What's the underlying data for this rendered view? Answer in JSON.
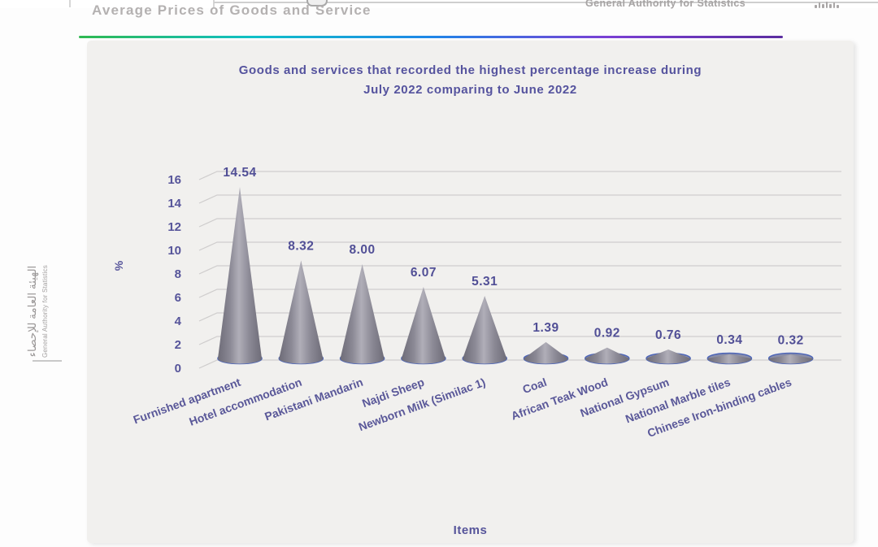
{
  "header": {
    "page_title": "Average Prices of Goods and Service",
    "org_name": "General Authority for Statistics",
    "gradient_colors": [
      "#2fb950",
      "#0fc0c8",
      "#1e86e8",
      "#7a3fd4",
      "#5b2da0"
    ]
  },
  "side_logo": {
    "arabic": "الهيئة العامة للإحصاء",
    "english": "General Authority for Statistics"
  },
  "chart_data": {
    "type": "bar",
    "subtype": "3d-cone",
    "title_line1": "Goods and services that recorded the highest percentage increase during",
    "title_line2": "July 2022 comparing to June 2022",
    "categories": [
      "Furnished apartment",
      "Hotel accommodation",
      "Pakistani Mandarin",
      "Najdi Sheep",
      "Newborn Milk  (Similac 1)",
      "Coal",
      "African Teak Wood",
      "National Gypsum",
      "National Marble tiles",
      "Chinese Iron-binding cables"
    ],
    "values": [
      14.54,
      8.32,
      8.0,
      6.07,
      5.31,
      1.39,
      0.92,
      0.76,
      0.34,
      0.32
    ],
    "value_labels": [
      "14.54",
      "8.32",
      "8.00",
      "6.07",
      "5.31",
      "1.39",
      "0.92",
      "0.76",
      "0.34",
      "0.32"
    ],
    "xlabel": "Items",
    "ylabel": "%",
    "ylim": [
      0,
      16
    ],
    "yticks": [
      0,
      2,
      4,
      6,
      8,
      10,
      12,
      14,
      16
    ],
    "grid": true,
    "legend": "none",
    "colors": {
      "cone_body_edge": "#6e6c78",
      "cone_body_mid": "#b0aeb8",
      "cone_body": "#8b8995",
      "cone_base_fill": "#8a8ea8",
      "cone_base_stroke": "#4e66b8",
      "gridline": "#cfcdcd",
      "axis_text": "#56549a",
      "value_label": "#514f96",
      "panel_bg": "#f1f0ee"
    }
  }
}
